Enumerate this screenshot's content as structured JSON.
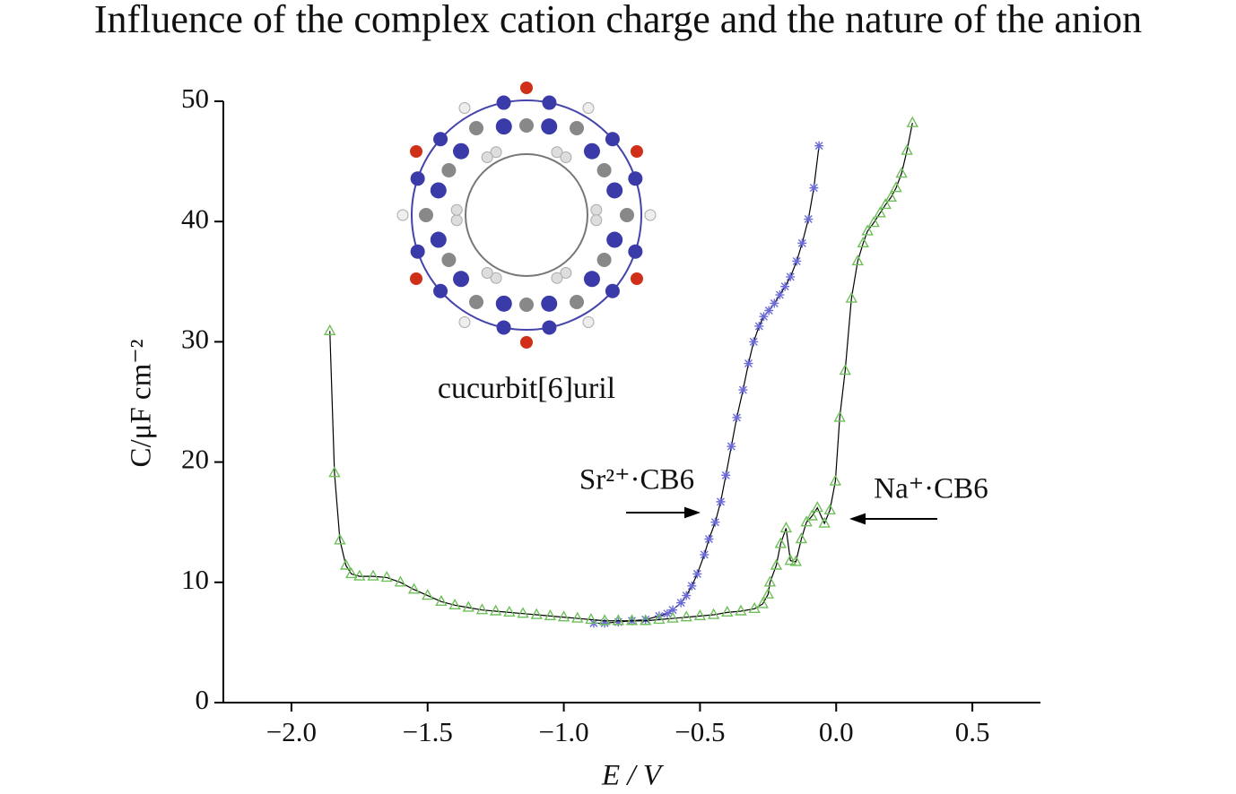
{
  "chart_data": {
    "type": "line",
    "title": "Influence of the complex cation charge and the nature of the anion",
    "xlabel": "E / V",
    "ylabel": "C/μF cm⁻²",
    "annotations": [
      "cucurbit[6]uril"
    ],
    "xlim": [
      -2.25,
      0.75
    ],
    "ylim": [
      0,
      50
    ],
    "xticks": [
      {
        "value": -2,
        "label": "−2.0"
      },
      {
        "value": -1.5,
        "label": "−1.5"
      },
      {
        "value": -1,
        "label": "−1.0"
      },
      {
        "value": -0.5,
        "label": "−0.5"
      },
      {
        "value": 0,
        "label": "0.0"
      },
      0.5
    ],
    "yticks": [
      0,
      10,
      20,
      30,
      40,
      50
    ],
    "grid": false,
    "series": [
      {
        "name": "Sr²⁺·CB6",
        "color": "#6b6bd8",
        "marker": "asterisk",
        "x": [
          -0.89,
          -0.85,
          -0.8,
          -0.75,
          -0.7,
          -0.65,
          -0.62,
          -0.6,
          -0.57,
          -0.55,
          -0.53,
          -0.51,
          -0.484,
          -0.467,
          -0.444,
          -0.424,
          -0.405,
          -0.385,
          -0.365,
          -0.342,
          -0.322,
          -0.303,
          -0.283,
          -0.266,
          -0.247,
          -0.227,
          -0.207,
          -0.188,
          -0.168,
          -0.145,
          -0.125,
          -0.102,
          -0.082,
          -0.063
        ],
        "values": [
          6.6,
          6.6,
          6.7,
          6.8,
          6.9,
          7.2,
          7.4,
          7.7,
          8.3,
          8.9,
          9.7,
          10.7,
          12.3,
          13.6,
          15.0,
          16.7,
          18.9,
          21.3,
          23.7,
          26.0,
          28.2,
          30.0,
          31.3,
          32.1,
          32.6,
          33.2,
          33.9,
          34.6,
          35.4,
          36.7,
          38.2,
          40.2,
          42.8,
          46.3
        ]
      },
      {
        "name": "Na⁺·CB6",
        "color": "#6fbf5a",
        "marker": "triangle",
        "x": [
          -1.859,
          -1.842,
          -1.822,
          -1.8,
          -1.78,
          -1.75,
          -1.7,
          -1.65,
          -1.6,
          -1.55,
          -1.5,
          -1.45,
          -1.4,
          -1.35,
          -1.3,
          -1.25,
          -1.2,
          -1.15,
          -1.1,
          -1.05,
          -1.0,
          -0.95,
          -0.9,
          -0.85,
          -0.8,
          -0.75,
          -0.7,
          -0.65,
          -0.6,
          -0.55,
          -0.5,
          -0.45,
          -0.4,
          -0.35,
          -0.3,
          -0.27,
          -0.25,
          -0.243,
          -0.22,
          -0.204,
          -0.184,
          -0.168,
          -0.148,
          -0.128,
          -0.109,
          -0.089,
          -0.069,
          -0.043,
          -0.023,
          -0.003,
          0.013,
          0.033,
          0.056,
          0.079,
          0.099,
          0.115,
          0.138,
          0.161,
          0.181,
          0.201,
          0.22,
          0.24,
          0.26,
          0.28
        ],
        "values": [
          30.9,
          19.1,
          13.5,
          11.4,
          10.7,
          10.5,
          10.5,
          10.4,
          10.0,
          9.4,
          8.9,
          8.4,
          8.1,
          7.9,
          7.7,
          7.6,
          7.5,
          7.4,
          7.3,
          7.2,
          7.1,
          7.0,
          6.9,
          6.8,
          6.8,
          6.8,
          6.8,
          6.9,
          7.0,
          7.1,
          7.2,
          7.3,
          7.5,
          7.6,
          7.8,
          8.2,
          9.0,
          10.0,
          11.4,
          13.2,
          14.5,
          11.8,
          11.7,
          13.6,
          15.0,
          15.5,
          16.2,
          14.9,
          16.0,
          18.4,
          23.7,
          27.6,
          33.6,
          36.7,
          38.2,
          39.2,
          39.9,
          40.7,
          41.4,
          42.0,
          42.8,
          44.0,
          45.9,
          48.2
        ]
      }
    ]
  }
}
